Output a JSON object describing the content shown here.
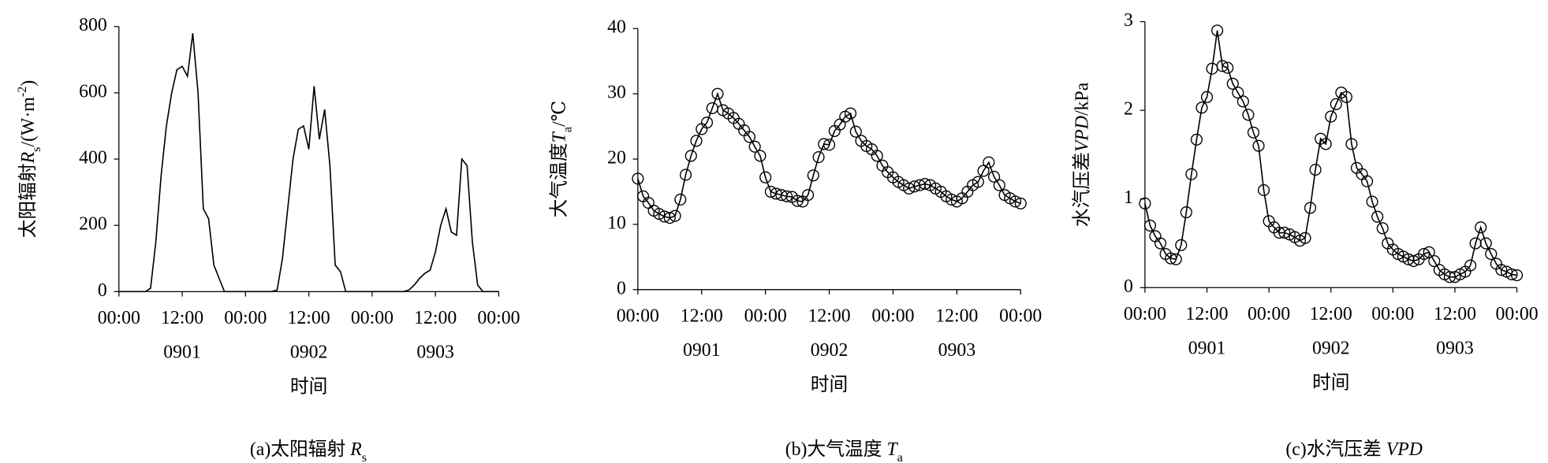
{
  "chart_data": [
    {
      "type": "line",
      "markers": false,
      "color": "#000000",
      "ylabel": [
        "太阳辐射",
        "R",
        "s",
        "/(W·m",
        "-2",
        ")"
      ],
      "xlabel": "时间",
      "caption": [
        "(a)太阳辐射 ",
        "R",
        "s"
      ],
      "x_groups": [
        "0901",
        "0902",
        "0903"
      ],
      "x": [
        0,
        1,
        2,
        3,
        4,
        5,
        6,
        7,
        8,
        9,
        10,
        11,
        12,
        13,
        14,
        15,
        16,
        17,
        18,
        19,
        20,
        21,
        22,
        23,
        24,
        25,
        26,
        27,
        28,
        29,
        30,
        31,
        32,
        33,
        34,
        35,
        36,
        37,
        38,
        39,
        40,
        41,
        42,
        43,
        44,
        45,
        46,
        47,
        48,
        49,
        50,
        51,
        52,
        53,
        54,
        55,
        56,
        57,
        58,
        59,
        60,
        61,
        62,
        63,
        64,
        65,
        66,
        67,
        68,
        69,
        70,
        71,
        72
      ],
      "values": [
        0,
        0,
        0,
        0,
        0,
        0,
        10,
        150,
        350,
        500,
        600,
        670,
        680,
        650,
        780,
        600,
        250,
        220,
        80,
        40,
        0,
        0,
        0,
        0,
        0,
        0,
        0,
        0,
        0,
        0,
        5,
        100,
        250,
        400,
        490,
        500,
        430,
        620,
        460,
        550,
        380,
        80,
        60,
        0,
        0,
        0,
        0,
        0,
        0,
        0,
        0,
        0,
        0,
        0,
        0,
        5,
        20,
        40,
        55,
        65,
        120,
        200,
        250,
        180,
        170,
        400,
        380,
        150,
        20,
        0,
        0,
        0,
        0
      ],
      "xlim": [
        0,
        72
      ],
      "xticks": [
        {
          "value": 0,
          "label": "00:00"
        },
        {
          "value": 12,
          "label": "12:00"
        },
        {
          "value": 24,
          "label": "00:00"
        },
        {
          "value": 36,
          "label": "12:00"
        },
        {
          "value": 48,
          "label": "00:00"
        },
        {
          "value": 60,
          "label": "12:00"
        },
        {
          "value": 72,
          "label": "00:00"
        }
      ],
      "ylim": [
        0,
        800
      ],
      "yticks": [
        0,
        200,
        400,
        600,
        800
      ]
    },
    {
      "type": "line",
      "markers": true,
      "color": "#000000",
      "ylabel": [
        "大气温度",
        "T",
        "a",
        "/℃"
      ],
      "xlabel": "时间",
      "caption": [
        "(b)大气温度 ",
        "T",
        "a"
      ],
      "x_groups": [
        "0901",
        "0902",
        "0903"
      ],
      "x": [
        0,
        1,
        2,
        3,
        4,
        5,
        6,
        7,
        8,
        9,
        10,
        11,
        12,
        13,
        14,
        15,
        16,
        17,
        18,
        19,
        20,
        21,
        22,
        23,
        24,
        25,
        26,
        27,
        28,
        29,
        30,
        31,
        32,
        33,
        34,
        35,
        36,
        37,
        38,
        39,
        40,
        41,
        42,
        43,
        44,
        45,
        46,
        47,
        48,
        49,
        50,
        51,
        52,
        53,
        54,
        55,
        56,
        57,
        58,
        59,
        60,
        61,
        62,
        63,
        64,
        65,
        66,
        67,
        68,
        69,
        70,
        71,
        72
      ],
      "values": [
        17,
        14.3,
        13.3,
        12.1,
        11.6,
        11.2,
        11,
        11.3,
        13.8,
        17.6,
        20.5,
        22.8,
        24.6,
        25.6,
        27.8,
        30,
        27.5,
        27,
        26.3,
        25.4,
        24.4,
        23.4,
        21.9,
        20.5,
        17.2,
        15,
        14.7,
        14.5,
        14.3,
        14.2,
        13.6,
        13.5,
        14.5,
        17.5,
        20.3,
        22.3,
        22.2,
        24.3,
        25.3,
        26.5,
        27,
        24.2,
        22.8,
        22,
        21.5,
        20.5,
        19,
        18,
        17.2,
        16.5,
        16,
        15.5,
        15.8,
        16,
        16.2,
        16,
        15.5,
        15,
        14.3,
        13.8,
        13.5,
        14,
        15,
        16,
        16.5,
        18.2,
        19.5,
        17.3,
        16,
        14.5,
        14,
        13.5,
        13.2
      ],
      "xlim": [
        0,
        72
      ],
      "xticks": [
        {
          "value": 0,
          "label": "00:00"
        },
        {
          "value": 12,
          "label": "12:00"
        },
        {
          "value": 24,
          "label": "00:00"
        },
        {
          "value": 36,
          "label": "12:00"
        },
        {
          "value": 48,
          "label": "00:00"
        },
        {
          "value": 60,
          "label": "12:00"
        },
        {
          "value": 72,
          "label": "00:00"
        }
      ],
      "ylim": [
        0,
        40
      ],
      "yticks": [
        0,
        10,
        20,
        30,
        40
      ]
    },
    {
      "type": "line",
      "markers": true,
      "color": "#000000",
      "ylabel": [
        "水汽压差",
        "VPD",
        "/kPa"
      ],
      "xlabel": "时间",
      "caption": [
        "(c)水汽压差 ",
        "VPD"
      ],
      "x_groups": [
        "0901",
        "0902",
        "0903"
      ],
      "x": [
        0,
        1,
        2,
        3,
        4,
        5,
        6,
        7,
        8,
        9,
        10,
        11,
        12,
        13,
        14,
        15,
        16,
        17,
        18,
        19,
        20,
        21,
        22,
        23,
        24,
        25,
        26,
        27,
        28,
        29,
        30,
        31,
        32,
        33,
        34,
        35,
        36,
        37,
        38,
        39,
        40,
        41,
        42,
        43,
        44,
        45,
        46,
        47,
        48,
        49,
        50,
        51,
        52,
        53,
        54,
        55,
        56,
        57,
        58,
        59,
        60,
        61,
        62,
        63,
        64,
        65,
        66,
        67,
        68,
        69,
        70,
        71,
        72
      ],
      "values": [
        0.95,
        0.7,
        0.58,
        0.5,
        0.38,
        0.33,
        0.32,
        0.48,
        0.85,
        1.28,
        1.67,
        2.03,
        2.15,
        2.47,
        2.9,
        2.5,
        2.48,
        2.3,
        2.2,
        2.1,
        1.95,
        1.75,
        1.6,
        1.1,
        0.75,
        0.68,
        0.62,
        0.62,
        0.6,
        0.57,
        0.53,
        0.56,
        0.9,
        1.33,
        1.68,
        1.62,
        1.93,
        2.07,
        2.2,
        2.15,
        1.62,
        1.35,
        1.28,
        1.2,
        0.97,
        0.8,
        0.67,
        0.5,
        0.43,
        0.38,
        0.35,
        0.32,
        0.3,
        0.32,
        0.38,
        0.4,
        0.3,
        0.2,
        0.15,
        0.12,
        0.12,
        0.15,
        0.18,
        0.25,
        0.5,
        0.68,
        0.5,
        0.38,
        0.27,
        0.2,
        0.18,
        0.15,
        0.14
      ],
      "xlim": [
        0,
        72
      ],
      "xticks": [
        {
          "value": 0,
          "label": "00:00"
        },
        {
          "value": 12,
          "label": "12:00"
        },
        {
          "value": 24,
          "label": "00:00"
        },
        {
          "value": 36,
          "label": "12:00"
        },
        {
          "value": 48,
          "label": "00:00"
        },
        {
          "value": 60,
          "label": "12:00"
        },
        {
          "value": 72,
          "label": "00:00"
        }
      ],
      "ylim": [
        0,
        3
      ],
      "yticks": [
        0,
        1,
        2,
        3
      ]
    }
  ]
}
